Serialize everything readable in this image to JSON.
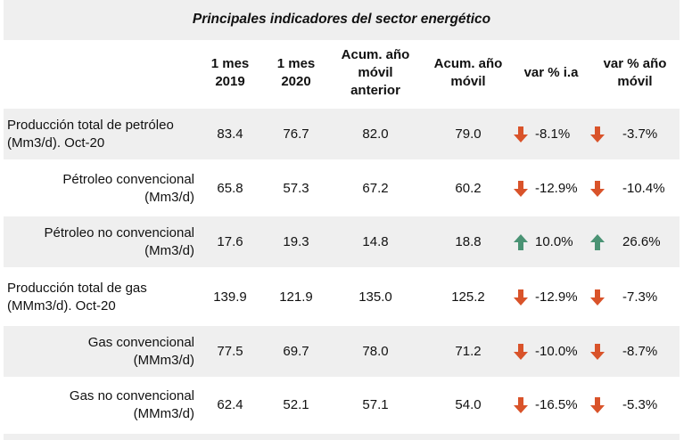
{
  "title": "Principales indicadores del sector energético",
  "headers": {
    "mes_2019": [
      "1 mes",
      "2019"
    ],
    "mes_2020": [
      "1 mes",
      "2020"
    ],
    "acum_anterior": [
      "Acum. año",
      "móvil",
      "anterior"
    ],
    "acum": [
      "Acum. año",
      "móvil"
    ],
    "var_ia": [
      "var % i.a"
    ],
    "var_movil": [
      "var % año",
      "móvil"
    ]
  },
  "colors": {
    "band": "#efefef",
    "down": "#d9532a",
    "up": "#4a9374"
  },
  "rows": [
    {
      "label": [
        "Producción total de petróleo",
        "(Mm3/d). Oct-20"
      ],
      "align": "left",
      "m2019": "83.4",
      "m2020": "76.7",
      "acum_ant": "82.0",
      "acum": "79.0",
      "var_ia": "-8.1%",
      "var_ia_dir": "down-arrow-icon",
      "var_mov": "-3.7%",
      "var_mov_dir": "down-arrow-icon"
    },
    {
      "label": [
        "Pétroleo convencional",
        "(Mm3/d)"
      ],
      "align": "right",
      "m2019": "65.8",
      "m2020": "57.3",
      "acum_ant": "67.2",
      "acum": "60.2",
      "var_ia": "-12.9%",
      "var_ia_dir": "down-arrow-icon",
      "var_mov": "-10.4%",
      "var_mov_dir": "down-arrow-icon"
    },
    {
      "label": [
        "Pétroleo no convencional",
        "(Mm3/d)"
      ],
      "align": "right",
      "m2019": "17.6",
      "m2020": "19.3",
      "acum_ant": "14.8",
      "acum": "18.8",
      "var_ia": "10.0%",
      "var_ia_dir": "up-arrow-icon",
      "var_mov": "26.6%",
      "var_mov_dir": "up-arrow-icon"
    },
    {
      "label": [
        "Producción total de gas",
        "(MMm3/d). Oct-20"
      ],
      "align": "left",
      "m2019": "139.9",
      "m2020": "121.9",
      "acum_ant": "135.0",
      "acum": "125.2",
      "var_ia": "-12.9%",
      "var_ia_dir": "down-arrow-icon",
      "var_mov": "-7.3%",
      "var_mov_dir": "down-arrow-icon"
    },
    {
      "label": [
        "Gas convencional",
        "(MMm3/d)"
      ],
      "align": "right",
      "m2019": "77.5",
      "m2020": "69.7",
      "acum_ant": "78.0",
      "acum": "71.2",
      "var_ia": "-10.0%",
      "var_ia_dir": "down-arrow-icon",
      "var_mov": "-8.7%",
      "var_mov_dir": "down-arrow-icon"
    },
    {
      "label": [
        "Gas no convencional",
        "(MMm3/d)"
      ],
      "align": "right",
      "m2019": "62.4",
      "m2020": "52.1",
      "acum_ant": "57.1",
      "acum": "54.0",
      "var_ia": "-16.5%",
      "var_ia_dir": "down-arrow-icon",
      "var_mov": "-5.3%",
      "var_mov_dir": "down-arrow-icon"
    }
  ]
}
